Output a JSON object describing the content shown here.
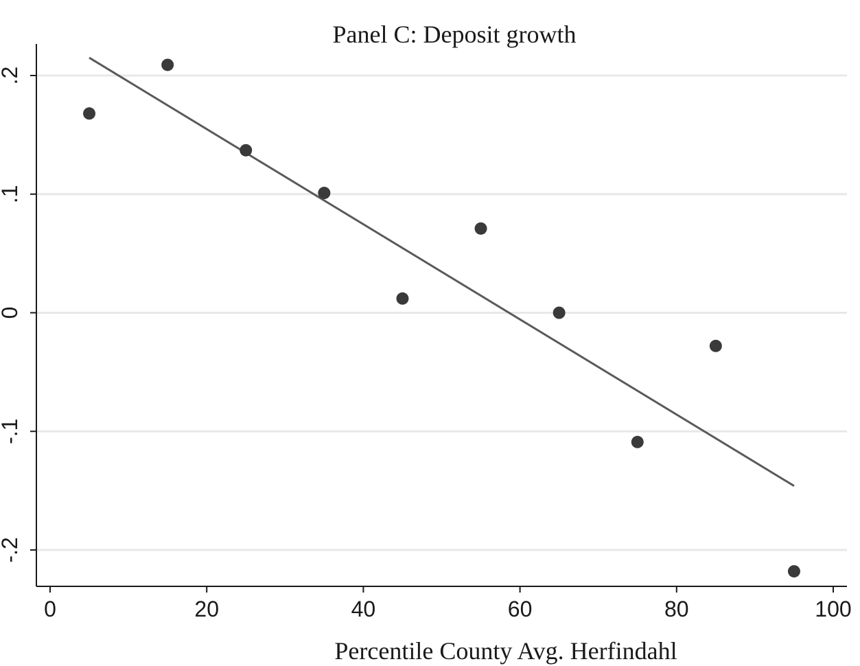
{
  "chart_data": {
    "type": "scatter",
    "title": "Panel C: Deposit growth",
    "xlabel": "Percentile County Avg. Herfindahl",
    "ylabel": "",
    "xlim": [
      0,
      100
    ],
    "ylim": [
      -0.2,
      0.2
    ],
    "x_ticks": [
      0,
      20,
      40,
      60,
      80,
      100
    ],
    "x_tick_labels": [
      "0",
      "20",
      "40",
      "60",
      "80",
      "100"
    ],
    "y_ticks": [
      -0.2,
      -0.1,
      0,
      0.1,
      0.2
    ],
    "y_tick_labels": [
      "-.2",
      "-.1",
      "0",
      ".1",
      ".2"
    ],
    "grid": "horizontal",
    "legend": "none",
    "series": [
      {
        "type": "scatter",
        "x": [
          5,
          15,
          25,
          35,
          45,
          55,
          65,
          75,
          85,
          95
        ],
        "y": [
          0.168,
          0.209,
          0.137,
          0.101,
          0.012,
          0.071,
          0.0,
          -0.109,
          -0.028,
          -0.218
        ]
      },
      {
        "type": "line",
        "x": [
          5,
          95
        ],
        "y": [
          0.215,
          -0.146
        ]
      }
    ],
    "colors": {
      "points": "#3a3a3a",
      "fit_line": "#5a5a5a",
      "grid": "#e8e8e8",
      "axis": "#1a1a1a"
    }
  }
}
